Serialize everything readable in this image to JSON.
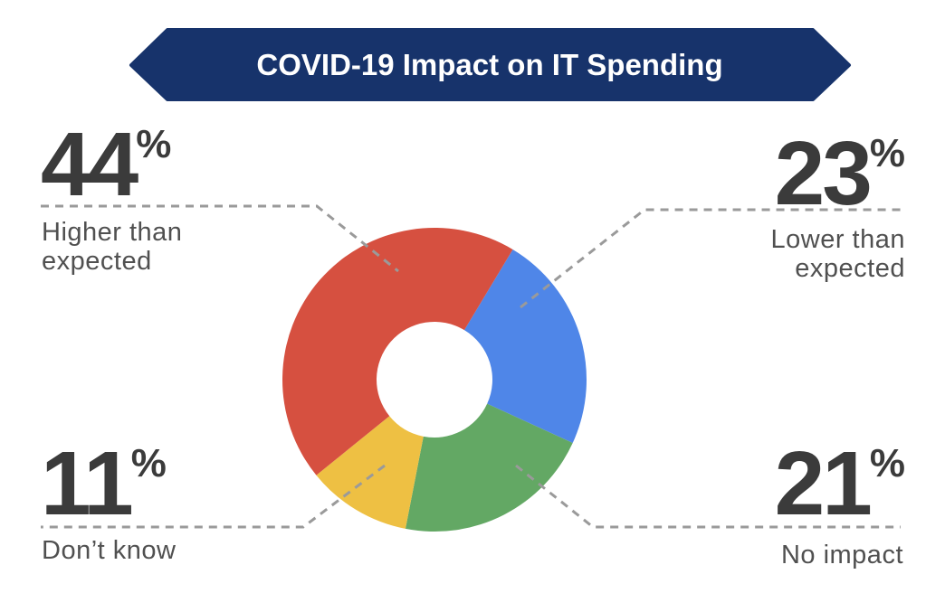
{
  "chart_data": {
    "type": "pie",
    "donut": true,
    "title": "COVID-19 Impact on IT Spending",
    "slices": [
      {
        "label": "Lower than expected",
        "value": 23,
        "display": "23",
        "color": "#4F86E8"
      },
      {
        "label": "No impact",
        "value": 21,
        "display": "21",
        "color": "#63A864"
      },
      {
        "label": "Don’t know",
        "value": 11,
        "display": "11",
        "color": "#EEC043"
      },
      {
        "label": "Higher than expected",
        "value": 44,
        "display": "44",
        "color": "#D65040"
      }
    ],
    "percent_sign": "%",
    "legend": "none"
  },
  "colors": {
    "banner": "#17336B",
    "text": "#3b3b3b",
    "leader": "#9a9a9a"
  }
}
